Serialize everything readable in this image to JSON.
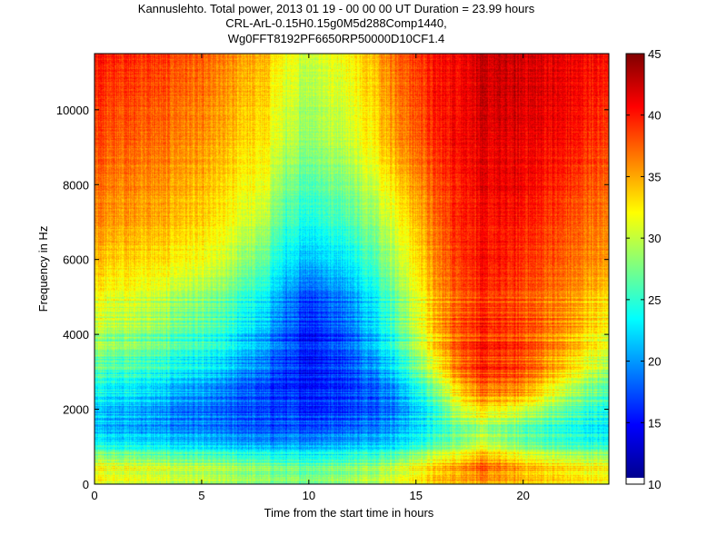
{
  "chart_data": {
    "type": "heatmap",
    "title_lines": [
      "Kannuslehto. Total power, 2013 01 19 - 00 00 00 UT  Duration = 23.99 hours",
      "CRL-ArL-0.15H0.15g0M5d288Comp1440,",
      "Wg0FFT8192PF6650RP50000D10CF1.4"
    ],
    "xlabel": "Time from the start time in hours",
    "ylabel": "Frequency in Hz",
    "xlim": [
      0,
      24
    ],
    "ylim": [
      0,
      11500
    ],
    "xticks": [
      0,
      5,
      10,
      15,
      20
    ],
    "yticks": [
      0,
      2000,
      4000,
      6000,
      8000,
      10000
    ],
    "colorbar": {
      "range": [
        10,
        45
      ],
      "ticks": [
        10,
        15,
        20,
        25,
        30,
        35,
        40,
        45
      ],
      "colormap": "jet"
    },
    "description_grid": {
      "x_hours": [
        0,
        2,
        4,
        6,
        8,
        9,
        10,
        12,
        14,
        16,
        17,
        18,
        20,
        22,
        24
      ],
      "y_hz": [
        0,
        500,
        1000,
        1500,
        2000,
        2500,
        3000,
        4000,
        5000,
        6000,
        7000,
        8000,
        9000,
        10000,
        11500
      ],
      "power": [
        [
          31,
          30,
          29,
          28,
          27,
          27,
          27,
          28,
          30,
          33,
          34,
          34,
          33,
          32,
          31
        ],
        [
          32,
          31,
          30,
          29,
          28,
          27,
          27,
          28,
          30,
          34,
          36,
          38,
          35,
          33,
          32
        ],
        [
          24,
          23,
          22,
          21,
          20,
          20,
          20,
          21,
          22,
          26,
          28,
          30,
          27,
          25,
          24
        ],
        [
          21,
          20,
          19,
          18,
          17,
          17,
          17,
          18,
          20,
          24,
          27,
          28,
          26,
          24,
          22
        ],
        [
          22,
          21,
          19,
          18,
          17,
          17,
          16,
          17,
          19,
          25,
          31,
          33,
          31,
          27,
          24
        ],
        [
          24,
          23,
          21,
          19,
          17,
          16,
          16,
          17,
          20,
          28,
          34,
          37,
          36,
          30,
          26
        ],
        [
          26,
          25,
          23,
          21,
          18,
          16,
          15,
          17,
          22,
          31,
          37,
          39,
          38,
          33,
          28
        ],
        [
          29,
          28,
          26,
          24,
          20,
          17,
          15,
          18,
          25,
          34,
          38,
          39,
          38,
          35,
          31
        ],
        [
          32,
          31,
          29,
          27,
          23,
          19,
          17,
          20,
          27,
          35,
          38,
          39,
          38,
          36,
          33
        ],
        [
          34,
          33,
          32,
          30,
          26,
          22,
          21,
          23,
          29,
          36,
          39,
          40,
          39,
          37,
          35
        ],
        [
          36,
          35,
          34,
          32,
          29,
          25,
          24,
          26,
          31,
          37,
          40,
          40,
          40,
          38,
          36
        ],
        [
          37,
          36,
          35,
          33,
          31,
          27,
          26,
          28,
          33,
          38,
          40,
          41,
          41,
          39,
          37
        ],
        [
          38,
          37,
          36,
          34,
          32,
          29,
          28,
          30,
          35,
          39,
          41,
          41,
          41,
          40,
          38
        ],
        [
          39,
          38,
          37,
          35,
          33,
          30,
          29,
          31,
          36,
          40,
          41,
          42,
          42,
          41,
          39
        ],
        [
          40,
          39,
          38,
          36,
          34,
          31,
          30,
          32,
          37,
          40,
          41,
          42,
          42,
          41,
          40
        ]
      ]
    }
  }
}
